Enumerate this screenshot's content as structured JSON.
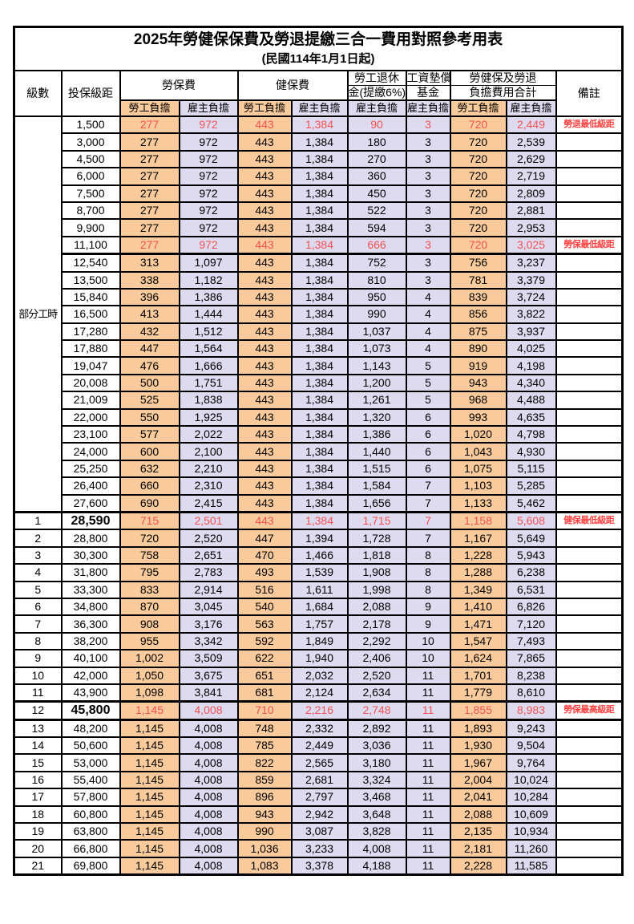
{
  "table": {
    "title": "2025年勞健保保費及勞退提繳三合一費用對照參考用表",
    "subtitle": "(民國114年1月1日起)"
  },
  "header": {
    "level": "級數",
    "bracket": "投保級距",
    "labor_insurance": "勞保費",
    "health_insurance": "健保費",
    "pension_line1": "勞工退休",
    "pension_line2": "金(提繳6%)",
    "fund_line1": "工資墊償",
    "fund_line2": "基金",
    "total_line1": "勞健保及勞退",
    "total_line2": "負擔費用合計",
    "remark": "備註",
    "employee": "勞工負擔",
    "employer": "雇主負擔"
  },
  "group_label": "部分工時",
  "colors": {
    "employee_bg": "#F9CB9C",
    "employer_bg": "#DEDBF0",
    "highlight_text": "#F05252",
    "remark_text": "#FF4343"
  },
  "rows": [
    {
      "bracket": "1,500",
      "values": [
        "277",
        "972",
        "443",
        "1,384",
        "90",
        "3",
        "720",
        "2,449"
      ],
      "remark": "勞退最低級距",
      "red": true
    },
    {
      "bracket": "3,000",
      "values": [
        "277",
        "972",
        "443",
        "1,384",
        "180",
        "3",
        "720",
        "2,539"
      ]
    },
    {
      "bracket": "4,500",
      "values": [
        "277",
        "972",
        "443",
        "1,384",
        "270",
        "3",
        "720",
        "2,629"
      ]
    },
    {
      "bracket": "6,000",
      "values": [
        "277",
        "972",
        "443",
        "1,384",
        "360",
        "3",
        "720",
        "2,719"
      ]
    },
    {
      "bracket": "7,500",
      "values": [
        "277",
        "972",
        "443",
        "1,384",
        "450",
        "3",
        "720",
        "2,809"
      ]
    },
    {
      "bracket": "8,700",
      "values": [
        "277",
        "972",
        "443",
        "1,384",
        "522",
        "3",
        "720",
        "2,881"
      ]
    },
    {
      "bracket": "9,900",
      "values": [
        "277",
        "972",
        "443",
        "1,384",
        "594",
        "3",
        "720",
        "2,953"
      ]
    },
    {
      "bracket": "11,100",
      "values": [
        "277",
        "972",
        "443",
        "1,384",
        "666",
        "3",
        "720",
        "3,025"
      ],
      "remark": "勞保最低級距",
      "red": true
    },
    {
      "bracket": "12,540",
      "values": [
        "313",
        "1,097",
        "443",
        "1,384",
        "752",
        "3",
        "756",
        "3,237"
      ],
      "thickTop": true
    },
    {
      "bracket": "13,500",
      "values": [
        "338",
        "1,182",
        "443",
        "1,384",
        "810",
        "3",
        "781",
        "3,379"
      ]
    },
    {
      "bracket": "15,840",
      "values": [
        "396",
        "1,386",
        "443",
        "1,384",
        "950",
        "4",
        "839",
        "3,724"
      ]
    },
    {
      "bracket": "16,500",
      "values": [
        "413",
        "1,444",
        "443",
        "1,384",
        "990",
        "4",
        "856",
        "3,822"
      ]
    },
    {
      "bracket": "17,280",
      "values": [
        "432",
        "1,512",
        "443",
        "1,384",
        "1,037",
        "4",
        "875",
        "3,937"
      ]
    },
    {
      "bracket": "17,880",
      "values": [
        "447",
        "1,564",
        "443",
        "1,384",
        "1,073",
        "4",
        "890",
        "4,025"
      ]
    },
    {
      "bracket": "19,047",
      "values": [
        "476",
        "1,666",
        "443",
        "1,384",
        "1,143",
        "5",
        "919",
        "4,198"
      ]
    },
    {
      "bracket": "20,008",
      "values": [
        "500",
        "1,751",
        "443",
        "1,384",
        "1,200",
        "5",
        "943",
        "4,340"
      ]
    },
    {
      "bracket": "21,009",
      "values": [
        "525",
        "1,838",
        "443",
        "1,384",
        "1,261",
        "5",
        "968",
        "4,488"
      ]
    },
    {
      "bracket": "22,000",
      "values": [
        "550",
        "1,925",
        "443",
        "1,384",
        "1,320",
        "6",
        "993",
        "4,635"
      ]
    },
    {
      "bracket": "23,100",
      "values": [
        "577",
        "2,022",
        "443",
        "1,384",
        "1,386",
        "6",
        "1,020",
        "4,798"
      ]
    },
    {
      "bracket": "24,000",
      "values": [
        "600",
        "2,100",
        "443",
        "1,384",
        "1,440",
        "6",
        "1,043",
        "4,930"
      ]
    },
    {
      "bracket": "25,250",
      "values": [
        "632",
        "2,210",
        "443",
        "1,384",
        "1,515",
        "6",
        "1,075",
        "5,115"
      ]
    },
    {
      "bracket": "26,400",
      "values": [
        "660",
        "2,310",
        "443",
        "1,384",
        "1,584",
        "7",
        "1,103",
        "5,285"
      ]
    },
    {
      "bracket": "27,600",
      "values": [
        "690",
        "2,415",
        "443",
        "1,384",
        "1,656",
        "7",
        "1,133",
        "5,462"
      ]
    },
    {
      "level": "1",
      "bracket": "28,590",
      "values": [
        "715",
        "2,501",
        "443",
        "1,384",
        "1,715",
        "7",
        "1,158",
        "5,608"
      ],
      "remark": "健保最低級距",
      "red": true,
      "boldBracket": true,
      "thickTop": true
    },
    {
      "level": "2",
      "bracket": "28,800",
      "values": [
        "720",
        "2,520",
        "447",
        "1,394",
        "1,728",
        "7",
        "1,167",
        "5,649"
      ]
    },
    {
      "level": "3",
      "bracket": "30,300",
      "values": [
        "758",
        "2,651",
        "470",
        "1,466",
        "1,818",
        "8",
        "1,228",
        "5,943"
      ]
    },
    {
      "level": "4",
      "bracket": "31,800",
      "values": [
        "795",
        "2,783",
        "493",
        "1,539",
        "1,908",
        "8",
        "1,288",
        "6,238"
      ]
    },
    {
      "level": "5",
      "bracket": "33,300",
      "values": [
        "833",
        "2,914",
        "516",
        "1,611",
        "1,998",
        "8",
        "1,349",
        "6,531"
      ]
    },
    {
      "level": "6",
      "bracket": "34,800",
      "values": [
        "870",
        "3,045",
        "540",
        "1,684",
        "2,088",
        "9",
        "1,410",
        "6,826"
      ]
    },
    {
      "level": "7",
      "bracket": "36,300",
      "values": [
        "908",
        "3,176",
        "563",
        "1,757",
        "2,178",
        "9",
        "1,471",
        "7,120"
      ]
    },
    {
      "level": "8",
      "bracket": "38,200",
      "values": [
        "955",
        "3,342",
        "592",
        "1,849",
        "2,292",
        "10",
        "1,547",
        "7,493"
      ]
    },
    {
      "level": "9",
      "bracket": "40,100",
      "values": [
        "1,002",
        "3,509",
        "622",
        "1,940",
        "2,406",
        "10",
        "1,624",
        "7,865"
      ]
    },
    {
      "level": "10",
      "bracket": "42,000",
      "values": [
        "1,050",
        "3,675",
        "651",
        "2,032",
        "2,520",
        "11",
        "1,701",
        "8,238"
      ]
    },
    {
      "level": "11",
      "bracket": "43,900",
      "values": [
        "1,098",
        "3,841",
        "681",
        "2,124",
        "2,634",
        "11",
        "1,779",
        "8,610"
      ]
    },
    {
      "level": "12",
      "bracket": "45,800",
      "values": [
        "1,145",
        "4,008",
        "710",
        "2,216",
        "2,748",
        "11",
        "1,855",
        "8,983"
      ],
      "remark": "勞保最高級距",
      "red": true,
      "boldBracket": true,
      "thickTop": true,
      "thickBottom": true
    },
    {
      "level": "13",
      "bracket": "48,200",
      "values": [
        "1,145",
        "4,008",
        "748",
        "2,332",
        "2,892",
        "11",
        "1,893",
        "9,243"
      ]
    },
    {
      "level": "14",
      "bracket": "50,600",
      "values": [
        "1,145",
        "4,008",
        "785",
        "2,449",
        "3,036",
        "11",
        "1,930",
        "9,504"
      ]
    },
    {
      "level": "15",
      "bracket": "53,000",
      "values": [
        "1,145",
        "4,008",
        "822",
        "2,565",
        "3,180",
        "11",
        "1,967",
        "9,764"
      ]
    },
    {
      "level": "16",
      "bracket": "55,400",
      "values": [
        "1,145",
        "4,008",
        "859",
        "2,681",
        "3,324",
        "11",
        "2,004",
        "10,024"
      ]
    },
    {
      "level": "17",
      "bracket": "57,800",
      "values": [
        "1,145",
        "4,008",
        "896",
        "2,797",
        "3,468",
        "11",
        "2,041",
        "10,284"
      ]
    },
    {
      "level": "18",
      "bracket": "60,800",
      "values": [
        "1,145",
        "4,008",
        "943",
        "2,942",
        "3,648",
        "11",
        "2,088",
        "10,609"
      ]
    },
    {
      "level": "19",
      "bracket": "63,800",
      "values": [
        "1,145",
        "4,008",
        "990",
        "3,087",
        "3,828",
        "11",
        "2,135",
        "10,934"
      ]
    },
    {
      "level": "20",
      "bracket": "66,800",
      "values": [
        "1,145",
        "4,008",
        "1,036",
        "3,233",
        "4,008",
        "11",
        "2,181",
        "11,260"
      ]
    },
    {
      "level": "21",
      "bracket": "69,800",
      "values": [
        "1,145",
        "4,008",
        "1,083",
        "3,378",
        "4,188",
        "11",
        "2,228",
        "11,585"
      ]
    }
  ]
}
